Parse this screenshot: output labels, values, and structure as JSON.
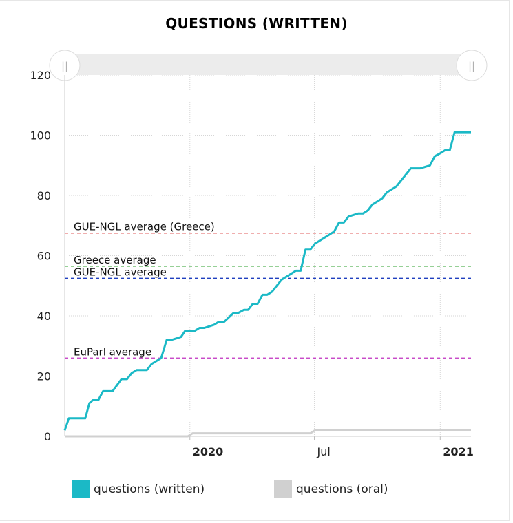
{
  "chart_data": {
    "type": "line",
    "title": "QUESTIONS (WRITTEN)",
    "xlabel": "",
    "ylabel": "",
    "ylim": [
      0,
      120
    ],
    "xlim": [
      "2019-07-02",
      "2021-02-15"
    ],
    "yticks": [
      0,
      20,
      40,
      60,
      80,
      100,
      120
    ],
    "xticks": [
      {
        "label": "2020",
        "date": "2020-01-01",
        "bold": true
      },
      {
        "label": "Jul",
        "date": "2020-07-01",
        "bold": false
      },
      {
        "label": "2021",
        "date": "2021-01-01",
        "bold": true
      }
    ],
    "grid": true,
    "series": [
      {
        "name": "questions (written)",
        "color": "#1bb9c6",
        "x": [
          "2019-07-02",
          "2019-07-08",
          "2019-08-01",
          "2019-08-07",
          "2019-08-12",
          "2019-08-20",
          "2019-08-27",
          "2019-09-10",
          "2019-09-23",
          "2019-10-01",
          "2019-10-08",
          "2019-10-15",
          "2019-10-30",
          "2019-11-06",
          "2019-11-20",
          "2019-11-28",
          "2019-12-05",
          "2019-12-19",
          "2019-12-25",
          "2020-01-08",
          "2020-01-15",
          "2020-01-22",
          "2020-02-05",
          "2020-02-12",
          "2020-02-20",
          "2020-03-05",
          "2020-03-12",
          "2020-03-20",
          "2020-03-26",
          "2020-04-02",
          "2020-04-09",
          "2020-04-16",
          "2020-04-23",
          "2020-04-30",
          "2020-05-07",
          "2020-05-14",
          "2020-05-21",
          "2020-05-28",
          "2020-06-04",
          "2020-06-11",
          "2020-06-18",
          "2020-06-25",
          "2020-07-02",
          "2020-07-09",
          "2020-07-16",
          "2020-07-23",
          "2020-07-30",
          "2020-08-06",
          "2020-08-13",
          "2020-08-20",
          "2020-09-03",
          "2020-09-10",
          "2020-09-17",
          "2020-09-24",
          "2020-10-01",
          "2020-10-08",
          "2020-10-15",
          "2020-10-29",
          "2020-11-05",
          "2020-11-19",
          "2020-11-26",
          "2020-12-03",
          "2020-12-17",
          "2020-12-24",
          "2021-01-01",
          "2021-01-08",
          "2021-01-15",
          "2021-01-22",
          "2021-01-29",
          "2021-02-05",
          "2021-02-15"
        ],
        "values": [
          2,
          6,
          6,
          11,
          12,
          12,
          15,
          15,
          19,
          19,
          21,
          22,
          22,
          24,
          26,
          32,
          32,
          33,
          35,
          35,
          36,
          36,
          37,
          38,
          38,
          41,
          41,
          42,
          42,
          44,
          44,
          47,
          47,
          48,
          50,
          52,
          53,
          54,
          55,
          55,
          62,
          62,
          64,
          65,
          66,
          67,
          68,
          71,
          71,
          73,
          74,
          74,
          75,
          77,
          78,
          79,
          81,
          83,
          85,
          89,
          89,
          89,
          90,
          93,
          94,
          95,
          95,
          101,
          101,
          101,
          101
        ]
      },
      {
        "name": "questions (oral)",
        "color": "#d0d0d0",
        "x": [
          "2019-07-02",
          "2019-12-29",
          "2020-01-05",
          "2020-06-25",
          "2020-07-02",
          "2021-02-15"
        ],
        "values": [
          0,
          0,
          1,
          1,
          2,
          2
        ]
      }
    ],
    "reference_lines": [
      {
        "label": "GUE-NGL average (Greece)",
        "value": 67.5,
        "color": "#d62728"
      },
      {
        "label": "Greece average",
        "value": 56.5,
        "color": "#2ca02c"
      },
      {
        "label": "GUE-NGL average",
        "value": 52.5,
        "color": "#1f3fbf"
      },
      {
        "label": "EuParl average",
        "value": 26,
        "color": "#c030c0"
      }
    ],
    "legend": {
      "position": "bottom"
    }
  },
  "legend_items": [
    {
      "label": "questions (written)",
      "color": "#1bb9c6"
    },
    {
      "label": "questions (oral)",
      "color": "#d0d0d0"
    }
  ],
  "navigator": {
    "left_handle_icon": "grip-icon",
    "right_handle_icon": "grip-icon",
    "handle_glyph": "||"
  }
}
